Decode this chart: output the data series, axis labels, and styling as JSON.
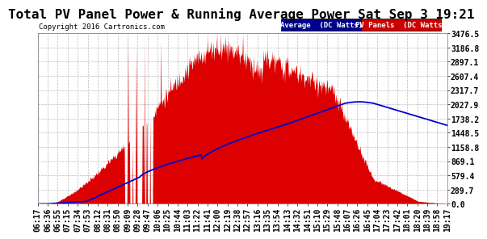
{
  "title": "Total PV Panel Power & Running Average Power Sat Sep 3 19:21",
  "copyright": "Copyright 2016 Cartronics.com",
  "ylabel_values": [
    0.0,
    289.7,
    579.4,
    869.1,
    1158.8,
    1448.5,
    1738.2,
    2027.9,
    2317.7,
    2607.4,
    2897.1,
    3186.8,
    3476.5
  ],
  "ymax": 3476.5,
  "ymin": 0.0,
  "x_labels": [
    "06:17",
    "06:36",
    "06:55",
    "07:15",
    "07:34",
    "07:53",
    "08:12",
    "08:31",
    "08:50",
    "09:09",
    "09:28",
    "09:47",
    "10:06",
    "10:25",
    "10:44",
    "11:03",
    "11:22",
    "11:41",
    "12:00",
    "12:19",
    "12:38",
    "12:57",
    "13:16",
    "13:35",
    "13:54",
    "14:13",
    "14:32",
    "14:51",
    "15:10",
    "15:29",
    "15:48",
    "16:07",
    "16:26",
    "16:45",
    "17:04",
    "17:23",
    "17:42",
    "18:01",
    "18:20",
    "18:39",
    "18:58",
    "19:17"
  ],
  "background_color": "#ffffff",
  "plot_bg_color": "#ffffff",
  "grid_color": "#bbbbbb",
  "pv_color": "#dd0000",
  "avg_color": "#0000cc",
  "legend_avg_bg": "#00008B",
  "legend_pv_bg": "#cc0000",
  "title_fontsize": 11.5,
  "tick_fontsize": 7,
  "n_points": 800
}
